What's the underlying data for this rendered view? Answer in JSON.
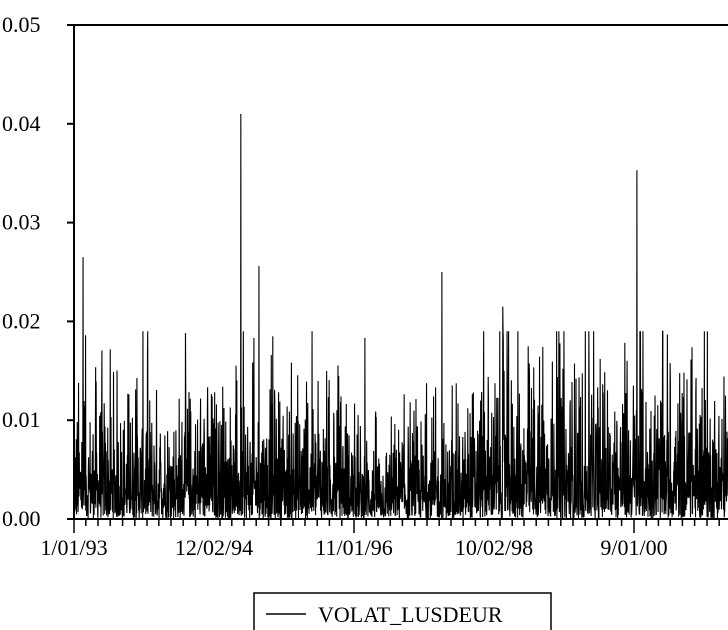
{
  "chart_data": {
    "type": "line",
    "title": "",
    "xlabel": "",
    "ylabel": "",
    "ylim": [
      0.0,
      0.05
    ],
    "grid": false,
    "legend": "bottom-center",
    "y_ticks": [
      "0.00",
      "0.01",
      "0.02",
      "0.03",
      "0.04",
      "0.05"
    ],
    "y_tick_values": [
      0.0,
      0.01,
      0.02,
      0.03,
      0.04,
      0.05
    ],
    "x_tick_labels": [
      "1/01/93",
      "12/02/94",
      "11/01/96",
      "10/02/98",
      "9/01/00"
    ],
    "series": [
      {
        "name": "VOLAT_LUSDEUR",
        "color": "#000000",
        "sampled_points": 2600,
        "baseline_mean": 0.004,
        "noted_spikes": [
          {
            "date": "1993-02",
            "value": 0.0265
          },
          {
            "date": "1995-04",
            "value": 0.041
          },
          {
            "date": "1995-07",
            "value": 0.0256
          },
          {
            "date": "1998-01",
            "value": 0.025
          },
          {
            "date": "1998-11",
            "value": 0.0215
          },
          {
            "date": "2000-09",
            "value": 0.0353
          }
        ]
      }
    ]
  }
}
